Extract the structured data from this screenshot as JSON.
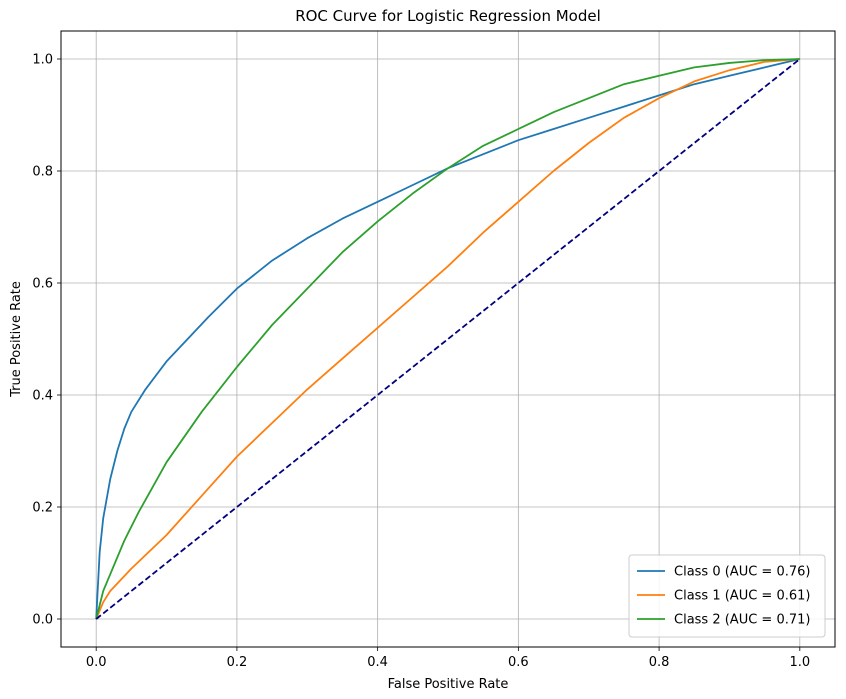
{
  "chart_data": {
    "type": "line",
    "title": "ROC Curve for Logistic Regression Model",
    "xlabel": "False Positive Rate",
    "ylabel": "True Positive Rate",
    "xlim": [
      -0.05,
      1.05
    ],
    "ylim": [
      -0.05,
      1.05
    ],
    "xticks": [
      0.0,
      0.2,
      0.4,
      0.6,
      0.8,
      1.0
    ],
    "yticks": [
      0.0,
      0.2,
      0.4,
      0.6,
      0.8,
      1.0
    ],
    "xtick_labels": [
      "0.0",
      "0.2",
      "0.4",
      "0.6",
      "0.8",
      "1.0"
    ],
    "ytick_labels": [
      "0.0",
      "0.2",
      "0.4",
      "0.6",
      "0.8",
      "1.0"
    ],
    "grid": true,
    "legend_position": "lower-right",
    "series": [
      {
        "name": "Class 0 (AUC = 0.76)",
        "color": "#1f77b4",
        "x": [
          0,
          0.005,
          0.01,
          0.02,
          0.03,
          0.04,
          0.05,
          0.07,
          0.1,
          0.13,
          0.16,
          0.2,
          0.25,
          0.3,
          0.35,
          0.4,
          0.45,
          0.5,
          0.55,
          0.6,
          0.65,
          0.7,
          0.75,
          0.8,
          0.85,
          0.9,
          0.95,
          1.0
        ],
        "y": [
          0,
          0.12,
          0.18,
          0.25,
          0.3,
          0.34,
          0.37,
          0.41,
          0.46,
          0.5,
          0.54,
          0.59,
          0.64,
          0.68,
          0.715,
          0.745,
          0.775,
          0.805,
          0.83,
          0.855,
          0.875,
          0.895,
          0.915,
          0.935,
          0.955,
          0.97,
          0.985,
          1.0
        ]
      },
      {
        "name": "Class 1 (AUC = 0.61)",
        "color": "#ff7f0e",
        "x": [
          0,
          0.01,
          0.02,
          0.05,
          0.1,
          0.15,
          0.2,
          0.25,
          0.3,
          0.35,
          0.4,
          0.45,
          0.5,
          0.55,
          0.6,
          0.65,
          0.7,
          0.75,
          0.8,
          0.85,
          0.9,
          0.95,
          1.0
        ],
        "y": [
          0,
          0.03,
          0.05,
          0.09,
          0.15,
          0.22,
          0.29,
          0.35,
          0.41,
          0.465,
          0.52,
          0.575,
          0.63,
          0.69,
          0.745,
          0.8,
          0.85,
          0.895,
          0.93,
          0.96,
          0.98,
          0.995,
          1.0
        ]
      },
      {
        "name": "Class 2 (AUC = 0.71)",
        "color": "#2ca02c",
        "x": [
          0,
          0.01,
          0.02,
          0.04,
          0.06,
          0.08,
          0.1,
          0.15,
          0.2,
          0.25,
          0.3,
          0.35,
          0.4,
          0.45,
          0.5,
          0.55,
          0.6,
          0.65,
          0.7,
          0.75,
          0.8,
          0.85,
          0.9,
          0.95,
          1.0
        ],
        "y": [
          0,
          0.05,
          0.08,
          0.14,
          0.19,
          0.235,
          0.28,
          0.37,
          0.45,
          0.525,
          0.59,
          0.655,
          0.71,
          0.76,
          0.805,
          0.845,
          0.875,
          0.905,
          0.93,
          0.955,
          0.97,
          0.985,
          0.993,
          0.998,
          1.0
        ]
      },
      {
        "name": "",
        "color": "#000080",
        "dashed": true,
        "x": [
          0,
          1
        ],
        "y": [
          0,
          1
        ]
      }
    ]
  }
}
